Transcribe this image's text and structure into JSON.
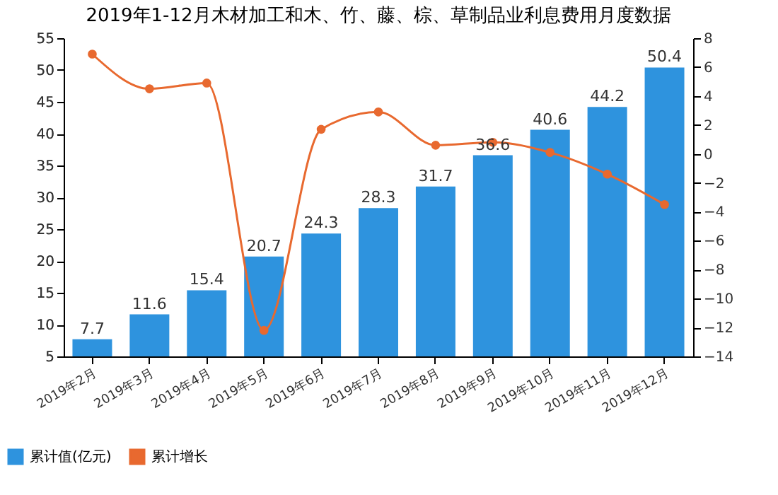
{
  "chart_data": {
    "type": "bar",
    "title": "2019年1-12月木材加工和木、竹、藤、棕、草制品业利息费用月度数据",
    "categories": [
      "2019年2月",
      "2019年3月",
      "2019年4月",
      "2019年5月",
      "2019年6月",
      "2019年7月",
      "2019年8月",
      "2019年9月",
      "2019年10月",
      "2019年11月",
      "2019年12月"
    ],
    "series": [
      {
        "name": "累计值(亿元)",
        "color": "#2e93de",
        "values": [
          7.7,
          11.6,
          15.4,
          20.7,
          24.3,
          28.3,
          31.7,
          36.6,
          40.6,
          44.2,
          50.4
        ],
        "value_labels": [
          "7.7",
          "11.6",
          "15.4",
          "20.7",
          "24.3",
          "28.3",
          "31.7",
          "36.6",
          "40.6",
          "44.2",
          "50.4"
        ]
      },
      {
        "name": "累计增长",
        "type": "line",
        "axis": "y2",
        "color": "#e8692f",
        "values": [
          6.9,
          4.5,
          4.9,
          -12.2,
          1.7,
          2.9,
          0.6,
          0.8,
          0.1,
          -1.4,
          -3.5
        ]
      }
    ],
    "ylim": [
      5,
      55
    ],
    "yticks": [
      5,
      10,
      15,
      20,
      25,
      30,
      35,
      40,
      45,
      50,
      55
    ],
    "y2lim": [
      -14,
      8
    ],
    "y2ticks": [
      -14,
      -12,
      -10,
      -8,
      -6,
      -4,
      -2,
      0,
      2,
      4,
      6,
      8
    ],
    "marker": "circle",
    "legend": "bottom left",
    "grid": false
  }
}
